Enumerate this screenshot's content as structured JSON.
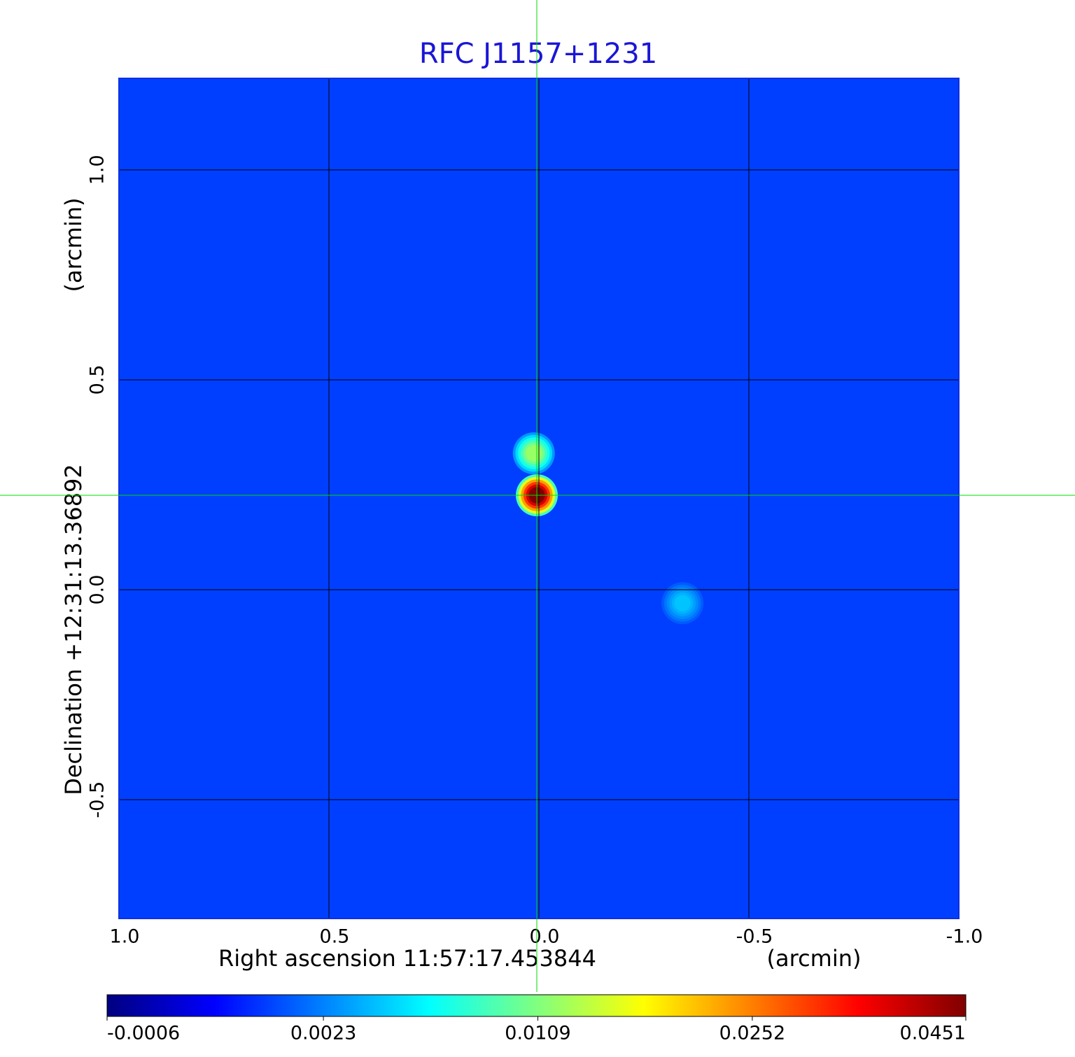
{
  "chart_data": {
    "type": "heatmap",
    "title": "RFC J1157+1231",
    "xlabel": "Right ascension  11:57:17.453844",
    "xunit": "(arcmin)",
    "ylabel": "Declination  +12:31:13.36892",
    "yunit": "(arcmin)",
    "xlim": [
      1.0,
      -1.0
    ],
    "ylim": [
      -0.783,
      1.218
    ],
    "xticks": [
      {
        "value": 1.0,
        "label": "1.0"
      },
      {
        "value": 0.5,
        "label": "0.5"
      },
      {
        "value": 0.0,
        "label": "0.0"
      },
      {
        "value": -0.5,
        "label": "-0.5"
      },
      {
        "value": -1.0,
        "label": "-1.0"
      }
    ],
    "yticks": [
      {
        "value": -0.5,
        "label": "-0.5"
      },
      {
        "value": 0.0,
        "label": "0.0"
      },
      {
        "value": 0.5,
        "label": "0.5"
      },
      {
        "value": 1.0,
        "label": "1.0"
      }
    ],
    "grid": true,
    "colormap": "jet",
    "color_scale": "sqrt",
    "clim": [
      -0.0006,
      0.0451
    ],
    "cticks": [
      -0.0006,
      0.0023,
      0.0109,
      0.0252,
      0.0451
    ],
    "background": 0.001,
    "sources": {
      "x": [
        0.005,
        0.012,
        -0.342
      ],
      "y": [
        0.225,
        0.325,
        -0.032
      ],
      "values": [
        0.0451,
        0.012,
        0.004
      ]
    },
    "crosshair": {
      "x": 0.005,
      "y": 0.225,
      "color": "#00dd00"
    }
  }
}
